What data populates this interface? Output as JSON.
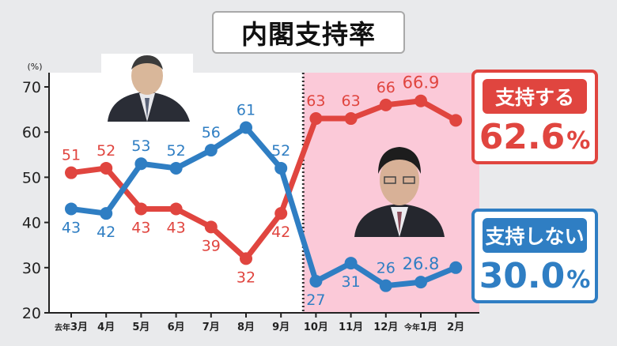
{
  "title": "内閣支持率",
  "chart_data": {
    "type": "line",
    "unit_label": "(%)",
    "categories": [
      {
        "prefix": "去年",
        "label": "3月"
      },
      {
        "prefix": "",
        "label": "4月"
      },
      {
        "prefix": "",
        "label": "5月"
      },
      {
        "prefix": "",
        "label": "6月"
      },
      {
        "prefix": "",
        "label": "7月"
      },
      {
        "prefix": "",
        "label": "8月"
      },
      {
        "prefix": "",
        "label": "9月"
      },
      {
        "prefix": "",
        "label": "10月"
      },
      {
        "prefix": "",
        "label": "11月"
      },
      {
        "prefix": "",
        "label": "12月"
      },
      {
        "prefix": "今年",
        "label": "1月"
      },
      {
        "prefix": "",
        "label": "2月"
      }
    ],
    "ylim": [
      20,
      70
    ],
    "yticks": [
      20,
      30,
      40,
      50,
      60,
      70
    ],
    "series": [
      {
        "name": "支持する",
        "color": "#e0453f",
        "values": [
          51,
          52,
          43,
          43,
          39,
          32,
          42,
          63,
          63,
          66,
          66.9,
          62.6
        ],
        "labels": [
          "51",
          "52",
          "43",
          "43",
          "39",
          "32",
          "42",
          "63",
          "63",
          "66",
          "66.9",
          ""
        ]
      },
      {
        "name": "支持しない",
        "color": "#2f7ec3",
        "values": [
          43,
          42,
          53,
          52,
          56,
          61,
          52,
          27,
          31,
          26,
          26.8,
          30.0
        ],
        "labels": [
          "43",
          "42",
          "53",
          "52",
          "56",
          "61",
          "52",
          "27",
          "31",
          "26",
          "26.8",
          ""
        ]
      }
    ],
    "highlight_from_index": 7,
    "highlight_color": "#fbc9d8",
    "grid": false
  },
  "legend": {
    "support": {
      "label": "支持する",
      "value": "62.6",
      "unit": "%"
    },
    "nonsupport": {
      "label": "支持しない",
      "value": "30.0",
      "unit": "%"
    }
  }
}
